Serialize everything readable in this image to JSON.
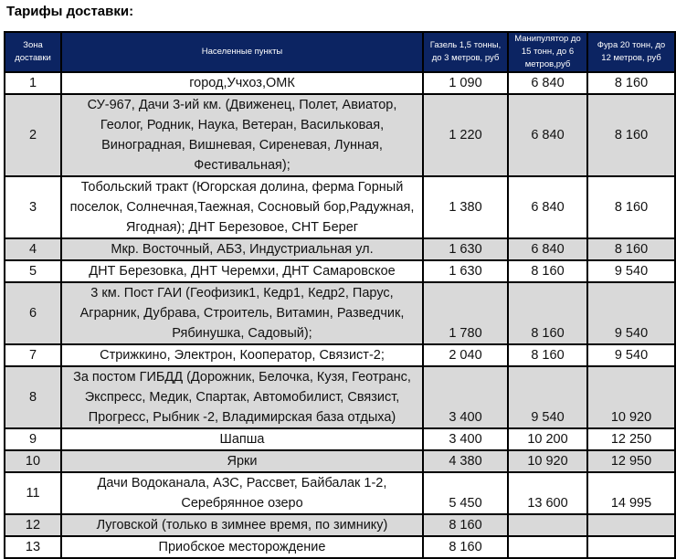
{
  "title": "Тарифы доставки:",
  "headers": [
    "Зона доставки",
    "Населенные пункты",
    "Газель 1,5 тонны, до 3 метров, руб",
    "Манипулятор до 15 тонн, до 6 метров,руб",
    "Фура 20 тонн, до 12 метров, руб"
  ],
  "rows": [
    {
      "zone": "1",
      "places": "город,Учхоз,ОМК",
      "gazel": "1 090",
      "manip": "6 840",
      "fura": "8 160"
    },
    {
      "zone": "2",
      "places": "СУ-967, Дачи 3-ий км. (Движенец, Полет, Авиатор, Геолог, Родник, Наука, Ветеран, Васильковая, Виноградная, Вишневая, Сиреневая, Лунная, Фестивальная);",
      "gazel": "1 220",
      "manip": "6 840",
      "fura": "8 160"
    },
    {
      "zone": "3",
      "places": "Тобольский тракт (Югорская долина, ферма Горный поселок, Солнечная,Таежная, Сосновый бор,Радужная, Ягодная); ДНТ Березовое, СНТ Берег",
      "gazel": "1 380",
      "manip": "6 840",
      "fura": "8 160"
    },
    {
      "zone": "4",
      "places": "Мкр. Восточный, АБЗ, Индустриальная ул.",
      "gazel": "1 630",
      "manip": "6 840",
      "fura": "8 160"
    },
    {
      "zone": "5",
      "places": "ДНТ Березовка, ДНТ Черемхи, ДНТ Самаровское",
      "gazel": "1 630",
      "manip": "8 160",
      "fura": "9 540"
    },
    {
      "zone": "6",
      "places": "3 км. Пост ГАИ (Геофизик1, Кедр1, Кедр2, Парус, Аграрник, Дубрава, Строитель, Витамин, Разведчик, Рябинушка, Садовый);",
      "gazel": "1 780",
      "manip": "8 160",
      "fura": "9 540"
    },
    {
      "zone": "7",
      "places": "Стрижкино, Электрон, Кооператор, Связист-2;",
      "gazel": "2 040",
      "manip": "8 160",
      "fura": "9 540"
    },
    {
      "zone": "8",
      "places": "За постом ГИБДД (Дорожник, Белочка, Кузя, Геотранс, Экспресс, Медик, Спартак, Автомобилист, Связист, Прогресс, Рыбник -2, Владимирская база отдыха)",
      "gazel": "3 400",
      "manip": "9 540",
      "fura": "10 920"
    },
    {
      "zone": "9",
      "places": "Шапша",
      "gazel": "3 400",
      "manip": "10 200",
      "fura": "12 250"
    },
    {
      "zone": "10",
      "places": "Ярки",
      "gazel": "4 380",
      "manip": "10 920",
      "fura": "12 950"
    },
    {
      "zone": "11",
      "places": "Дачи Водоканала, АЗС, Рассвет, Байбалак 1-2, Серебрянное озеро",
      "gazel": "5 450",
      "manip": "13 600",
      "fura": "14 995"
    },
    {
      "zone": "12",
      "places": "Луговской (только в зимнее время, по зимнику)",
      "gazel": "8 160",
      "manip": "",
      "fura": ""
    },
    {
      "zone": "13",
      "places": "Приобское месторождение",
      "gazel": "8 160",
      "manip": "",
      "fura": ""
    }
  ]
}
